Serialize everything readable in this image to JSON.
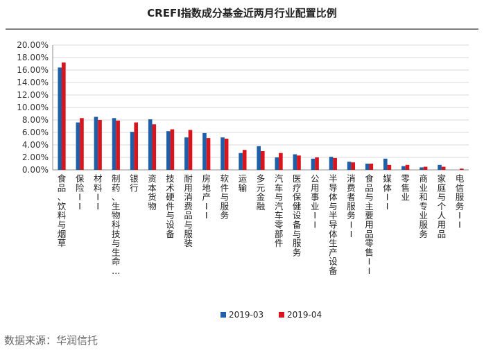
{
  "source_note": "数据来源：华润信托",
  "colors": {
    "series_1": "#1f5fa8",
    "series_2": "#d8141c",
    "grid": "#d9d9d9",
    "axis": "#8c8c8c"
  },
  "chart_data": {
    "type": "bar",
    "title": "CREFI指数成分基金近两月行业配置比例",
    "xlabel": "",
    "ylabel": "",
    "ylim": [
      0,
      20
    ],
    "yticks": [
      "0.00%",
      "2.00%",
      "4.00%",
      "6.00%",
      "8.00%",
      "10.00%",
      "12.00%",
      "14.00%",
      "16.00%",
      "18.00%",
      "20.00%"
    ],
    "grid": true,
    "legend_position": "bottom",
    "categories": [
      "食品、饮料与烟草",
      "保险II",
      "材料II",
      "制药、生物科技与生命…",
      "银行",
      "资本货物",
      "技术硬件与设备",
      "耐用消费品与服装",
      "房地产II",
      "软件与服务",
      "运输",
      "多元金融",
      "汽车与汽车零部件",
      "医疗保健设备与服务",
      "公用事业II",
      "半导体与半导体生产设备",
      "消费者服务II",
      "食品与主要用品零售II",
      "媒体II",
      "零售业",
      "商业和专业服务",
      "家庭与个人用品",
      "电信服务II"
    ],
    "series": [
      {
        "name": "2019-03",
        "values": [
          16.4,
          7.6,
          8.5,
          8.3,
          6.1,
          8.1,
          6.2,
          5.2,
          5.9,
          5.2,
          2.7,
          3.8,
          2.0,
          2.5,
          1.8,
          2.1,
          1.3,
          1.0,
          1.8,
          0.6,
          0.4,
          0.8,
          0.0
        ]
      },
      {
        "name": "2019-04",
        "values": [
          17.2,
          8.3,
          8.0,
          7.9,
          7.6,
          7.3,
          6.5,
          6.4,
          5.1,
          5.0,
          3.2,
          3.0,
          2.7,
          2.3,
          2.0,
          1.9,
          1.2,
          1.0,
          0.8,
          0.8,
          0.5,
          0.5,
          0.2
        ]
      }
    ]
  }
}
